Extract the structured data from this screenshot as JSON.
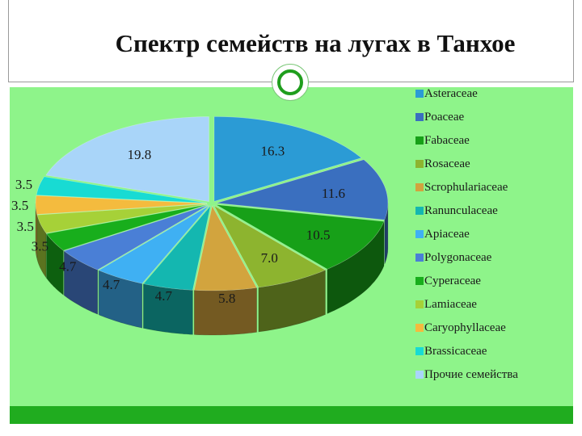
{
  "slide": {
    "title": "Спектр семейств на лугах в Танхое"
  },
  "colors": {
    "background": "#8ef48a",
    "bottom_bar": "#20ac1f",
    "ring": "#1f9e1d"
  },
  "chart_data": {
    "type": "pie",
    "style": "3d-exploded",
    "title": "Спектр семейств на лугах в Танхое",
    "legend_position": "right",
    "categories": [
      "Asteraceae",
      "Poaceae",
      "Fabaceae",
      "Rosaceae",
      "Scrophulariaceae",
      "Ranunculaceae",
      "Apiaceae",
      "Polygonaceae",
      "Cyperaceae",
      "Lamiaceae",
      "Caryophyllaceae",
      "Brassicaceae",
      "Прочие семейства"
    ],
    "values": [
      16.3,
      11.6,
      10.5,
      7.0,
      5.8,
      4.7,
      4.7,
      4.7,
      3.5,
      3.5,
      3.5,
      3.5,
      19.8
    ],
    "value_labels": [
      "16.3",
      "11.6",
      "10.5",
      "7.0",
      "5.8",
      "4.7",
      "4.7",
      "4.7",
      "3.5",
      "3.5",
      "3.5",
      "3.5",
      "19.8"
    ],
    "colors": [
      "#2b9bd5",
      "#3a6fbf",
      "#17a018",
      "#8db42f",
      "#d2a43e",
      "#14b7b0",
      "#3fb0f3",
      "#4a7fd6",
      "#18ae1c",
      "#a6d138",
      "#f4bb3e",
      "#18dbd3",
      "#a9d5f9"
    ]
  }
}
